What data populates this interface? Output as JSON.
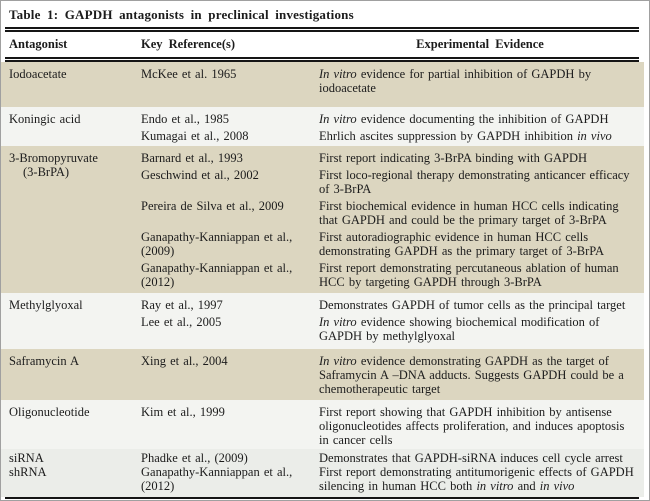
{
  "title": "Table 1: GAPDH antagonists in preclinical investigations",
  "columns": {
    "antagonist": "Antagonist",
    "references": "Key Reference(s)",
    "evidence": "Experimental Evidence"
  },
  "colors": {
    "row_beige": "#dcd6c0",
    "row_light": "#f3f4f1",
    "row_gray": "#ebede9",
    "rule": "#151515",
    "text": "#1c1c1c"
  },
  "rows": [
    {
      "antagonist": "Iodoacetate",
      "entries": [
        {
          "ref": "McKee et al. 1965",
          "evidence": "*In vitro* evidence for partial inhibition of GAPDH by iodoacetate"
        }
      ]
    },
    {
      "antagonist": "Koningic acid",
      "entries": [
        {
          "ref": "Endo et al., 1985",
          "evidence": "*In vitro* evidence documenting the inhibition of GAPDH"
        },
        {
          "ref": "Kumagai et al., 2008",
          "evidence": "Ehrlich ascites suppression by GAPDH inhibition *in vivo*"
        }
      ]
    },
    {
      "antagonist": "3-Bromopyruvate",
      "antagonist_line2": "(3-BrPA)",
      "entries": [
        {
          "ref": "Barnard et al., 1993",
          "evidence": "First report indicating 3-BrPA binding with GAPDH"
        },
        {
          "ref": "Geschwind et al., 2002",
          "evidence": "First loco-regional therapy demonstrating anticancer efficacy of 3-BrPA"
        },
        {
          "ref": "Pereira de Silva et al., 2009",
          "evidence": "First biochemical evidence in human HCC cells indicating that GAPDH and could be the primary target of 3-BrPA"
        },
        {
          "ref": "Ganapathy-Kanniappan et al., (2009)",
          "evidence": "First autoradiographic evidence in human HCC cells demonstrating GAPDH as the primary target of 3-BrPA"
        },
        {
          "ref": "Ganapathy-Kanniappan et al., (2012)",
          "evidence": "First report demonstrating percutaneous ablation of human HCC by targeting GAPDH through 3-BrPA"
        }
      ]
    },
    {
      "antagonist": "Methylglyoxal",
      "entries": [
        {
          "ref": "Ray et al., 1997",
          "evidence": "Demonstrates GAPDH of tumor cells as the principal target"
        },
        {
          "ref": "Lee et al., 2005",
          "evidence": "*In vitro* evidence showing biochemical modification of GAPDH by methylglyoxal"
        }
      ]
    },
    {
      "antagonist": "Saframycin A",
      "entries": [
        {
          "ref": "Xing et al., 2004",
          "evidence": "*In vitro* evidence demonstrating GAPDH as the target of Saframycin A –DNA adducts. Suggests GAPDH could be a chemotherapeutic target"
        }
      ]
    },
    {
      "antagonist": "Oligonucleotide",
      "entries": [
        {
          "ref": "Kim et al., 1999",
          "evidence": "First report showing that GAPDH inhibition by antisense oligonucleotides affects proliferation, and induces apoptosis in cancer cells"
        }
      ]
    },
    {
      "antagonist": "siRNA",
      "entries": [
        {
          "ref": "Phadke et al., (2009)",
          "evidence": "Demonstrates that GAPDH-siRNA induces cell cycle arrest"
        }
      ]
    },
    {
      "antagonist": "shRNA",
      "entries": [
        {
          "ref": "Ganapathy-Kanniappan et al., (2012)",
          "evidence": "First report demonstrating antitumorigenic effects of GAPDH silencing in human HCC both *in vitro* and *in vivo*"
        }
      ]
    }
  ]
}
